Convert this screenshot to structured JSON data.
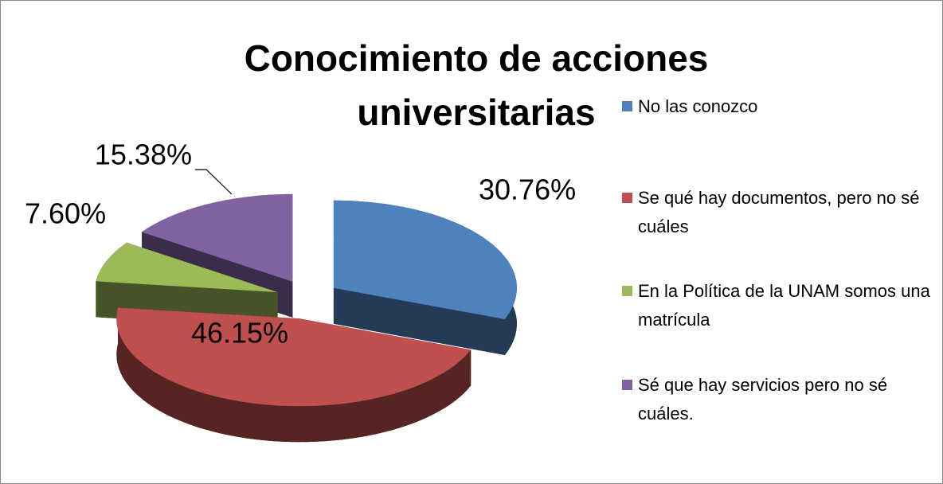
{
  "chart_data": {
    "type": "pie3d",
    "title": "Conocimiento de acciones universitarias",
    "categories": [
      "No las conozco",
      "Se qué hay documentos, pero no sé cuáles",
      "En la Política de la UNAM somos una matrícula",
      "Sé que hay servicios pero no sé cuáles."
    ],
    "values": [
      30.76,
      46.15,
      7.6,
      15.38
    ],
    "value_labels": [
      "30.76%",
      "46.15%",
      "7.60%",
      "15.38%"
    ],
    "colors": [
      "#4f81bd",
      "#c0504d",
      "#9bbb59",
      "#8064a2"
    ],
    "legend": "right"
  }
}
